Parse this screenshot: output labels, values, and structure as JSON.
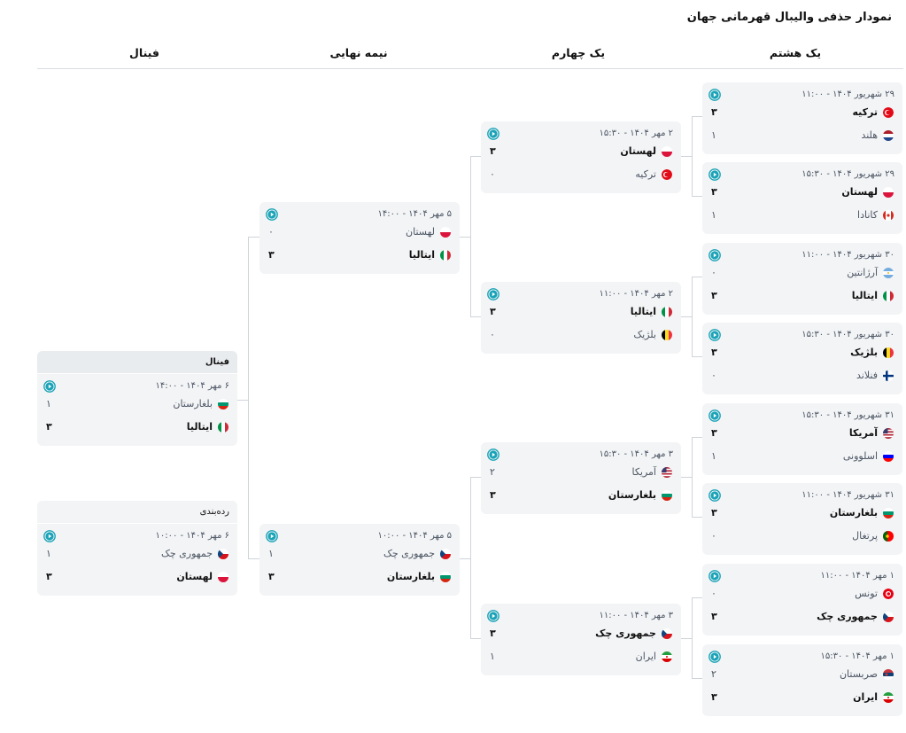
{
  "page": {
    "title": "نمودار حذفی والیبال قهرمانی جهان"
  },
  "rounds": {
    "r16": "یک هشتم",
    "qf": "یک چهارم",
    "sf": "نیمه نهایی",
    "final": "فینال"
  },
  "r16": [
    {
      "date": "۲۹ شهریور ۱۴۰۴ - ۱۱:۰۰",
      "t1": {
        "name": "ترکیه",
        "score": "۳",
        "flag": "tr"
      },
      "t2": {
        "name": "هلند",
        "score": "۱",
        "flag": "nl"
      },
      "winner": 1
    },
    {
      "date": "۲۹ شهریور ۱۴۰۴ - ۱۵:۳۰",
      "t1": {
        "name": "لهستان",
        "score": "۳",
        "flag": "pl"
      },
      "t2": {
        "name": "کانادا",
        "score": "۱",
        "flag": "ca"
      },
      "winner": 1
    },
    {
      "date": "۳۰ شهریور ۱۴۰۴ - ۱۱:۰۰",
      "t1": {
        "name": "آرژانتین",
        "score": "۰",
        "flag": "ar"
      },
      "t2": {
        "name": "ایتالیا",
        "score": "۳",
        "flag": "it"
      },
      "winner": 2
    },
    {
      "date": "۳۰ شهریور ۱۴۰۴ - ۱۵:۳۰",
      "t1": {
        "name": "بلژیک",
        "score": "۳",
        "flag": "be"
      },
      "t2": {
        "name": "فنلاند",
        "score": "۰",
        "flag": "fi"
      },
      "winner": 1
    },
    {
      "date": "۳۱ شهریور ۱۴۰۴ - ۱۵:۳۰",
      "t1": {
        "name": "آمریکا",
        "score": "۳",
        "flag": "us"
      },
      "t2": {
        "name": "اسلوونی",
        "score": "۱",
        "flag": "si"
      },
      "winner": 1
    },
    {
      "date": "۳۱ شهریور ۱۴۰۴ - ۱۱:۰۰",
      "t1": {
        "name": "بلغارستان",
        "score": "۳",
        "flag": "bg"
      },
      "t2": {
        "name": "پرتغال",
        "score": "۰",
        "flag": "pt"
      },
      "winner": 1
    },
    {
      "date": "۱ مهر ۱۴۰۴ - ۱۱:۰۰",
      "t1": {
        "name": "تونس",
        "score": "۰",
        "flag": "tn"
      },
      "t2": {
        "name": "جمهوری چک",
        "score": "۳",
        "flag": "cz"
      },
      "winner": 2
    },
    {
      "date": "۱ مهر ۱۴۰۴ - ۱۵:۳۰",
      "t1": {
        "name": "صربستان",
        "score": "۲",
        "flag": "rs"
      },
      "t2": {
        "name": "ایران",
        "score": "۳",
        "flag": "ir"
      },
      "winner": 2
    }
  ],
  "qf": [
    {
      "date": "۲ مهر ۱۴۰۴ - ۱۵:۳۰",
      "t1": {
        "name": "لهستان",
        "score": "۳",
        "flag": "pl"
      },
      "t2": {
        "name": "ترکیه",
        "score": "۰",
        "flag": "tr"
      },
      "winner": 1
    },
    {
      "date": "۲ مهر ۱۴۰۴ - ۱۱:۰۰",
      "t1": {
        "name": "ایتالیا",
        "score": "۳",
        "flag": "it"
      },
      "t2": {
        "name": "بلژیک",
        "score": "۰",
        "flag": "be"
      },
      "winner": 1
    },
    {
      "date": "۳ مهر ۱۴۰۴ - ۱۵:۳۰",
      "t1": {
        "name": "آمریکا",
        "score": "۲",
        "flag": "us"
      },
      "t2": {
        "name": "بلغارستان",
        "score": "۳",
        "flag": "bg"
      },
      "winner": 2
    },
    {
      "date": "۳ مهر ۱۴۰۴ - ۱۱:۰۰",
      "t1": {
        "name": "جمهوری چک",
        "score": "۳",
        "flag": "cz"
      },
      "t2": {
        "name": "ایران",
        "score": "۱",
        "flag": "ir"
      },
      "winner": 1
    }
  ],
  "sf": [
    {
      "date": "۵ مهر ۱۴۰۴ - ۱۴:۰۰",
      "t1": {
        "name": "لهستان",
        "score": "۰",
        "flag": "pl"
      },
      "t2": {
        "name": "ایتالیا",
        "score": "۳",
        "flag": "it"
      },
      "winner": 2
    },
    {
      "date": "۵ مهر ۱۴۰۴ - ۱۰:۰۰",
      "t1": {
        "name": "جمهوری چک",
        "score": "۱",
        "flag": "cz"
      },
      "t2": {
        "name": "بلغارستان",
        "score": "۳",
        "flag": "bg"
      },
      "winner": 2
    }
  ],
  "final": {
    "label": "فینال",
    "date": "۶ مهر ۱۴۰۴ - ۱۴:۰۰",
    "t1": {
      "name": "بلغارستان",
      "score": "۱",
      "flag": "bg"
    },
    "t2": {
      "name": "ایتالیا",
      "score": "۳",
      "flag": "it"
    },
    "winner": 2
  },
  "third": {
    "label": "رده‌بندی",
    "date": "۶ مهر ۱۴۰۴ - ۱۰:۰۰",
    "t1": {
      "name": "جمهوری چک",
      "score": "۱",
      "flag": "cz"
    },
    "t2": {
      "name": "لهستان",
      "score": "۳",
      "flag": "pl"
    },
    "winner": 2
  },
  "colors": {
    "accent": "#1aa3b7",
    "card": "#f3f4f6",
    "line": "#cfd4da"
  },
  "icons": {
    "play": "play-circle-icon"
  }
}
